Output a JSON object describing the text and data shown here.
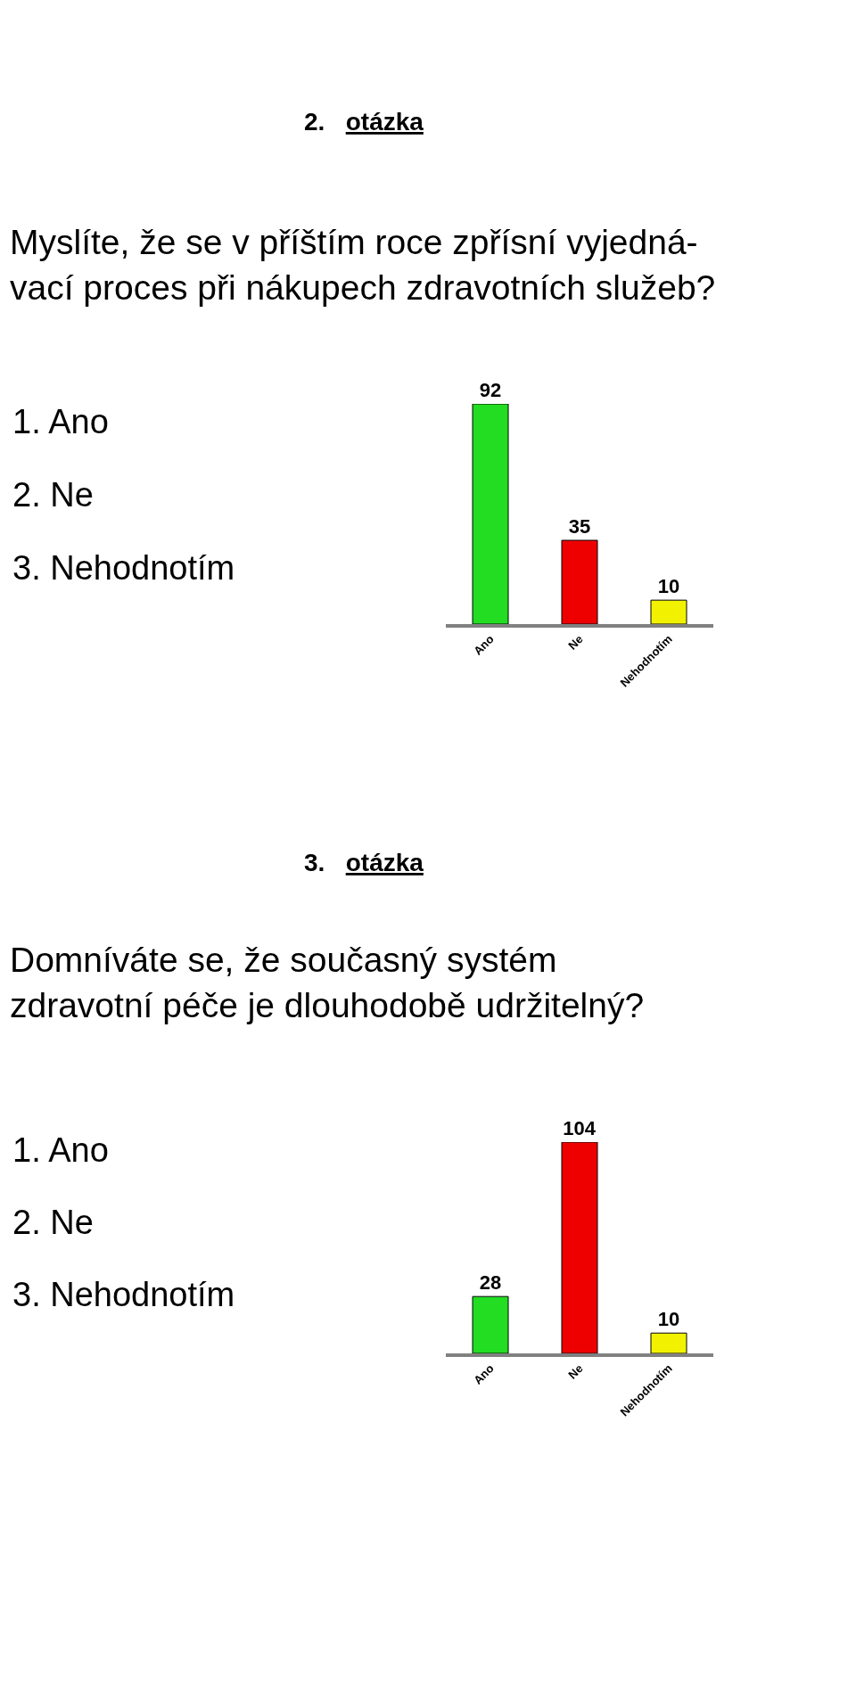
{
  "chart_data": [
    {
      "type": "bar",
      "title": "2. otázka",
      "subtitle": "Myslíte, že se v příštím roce zpřísní vyjedná-\nvací proces při nákupech zdravotních služeb?",
      "categories": [
        "Ano",
        "Ne",
        "Nehodnotím"
      ],
      "values": [
        92,
        35,
        10
      ],
      "colors": [
        "#22dd22",
        "#ee0000",
        "#f2f200"
      ],
      "data_labels": true,
      "tick_labels": "x",
      "annotations": [
        "1. Ano",
        "2. Ne",
        "3. Nehodnotím"
      ]
    },
    {
      "type": "bar",
      "title": "3. otázka",
      "subtitle": "Domníváte se, že současný systém\nzdravotní péče je dlouhodobě udržitelný?",
      "categories": [
        "Ano",
        "Ne",
        "Nehodnotím"
      ],
      "values": [
        28,
        104,
        10
      ],
      "colors": [
        "#22dd22",
        "#ee0000",
        "#f2f200"
      ],
      "data_labels": true,
      "tick_labels": "x",
      "annotations": [
        "1. Ano",
        "2. Ne",
        "3. Nehodnotím"
      ]
    }
  ]
}
